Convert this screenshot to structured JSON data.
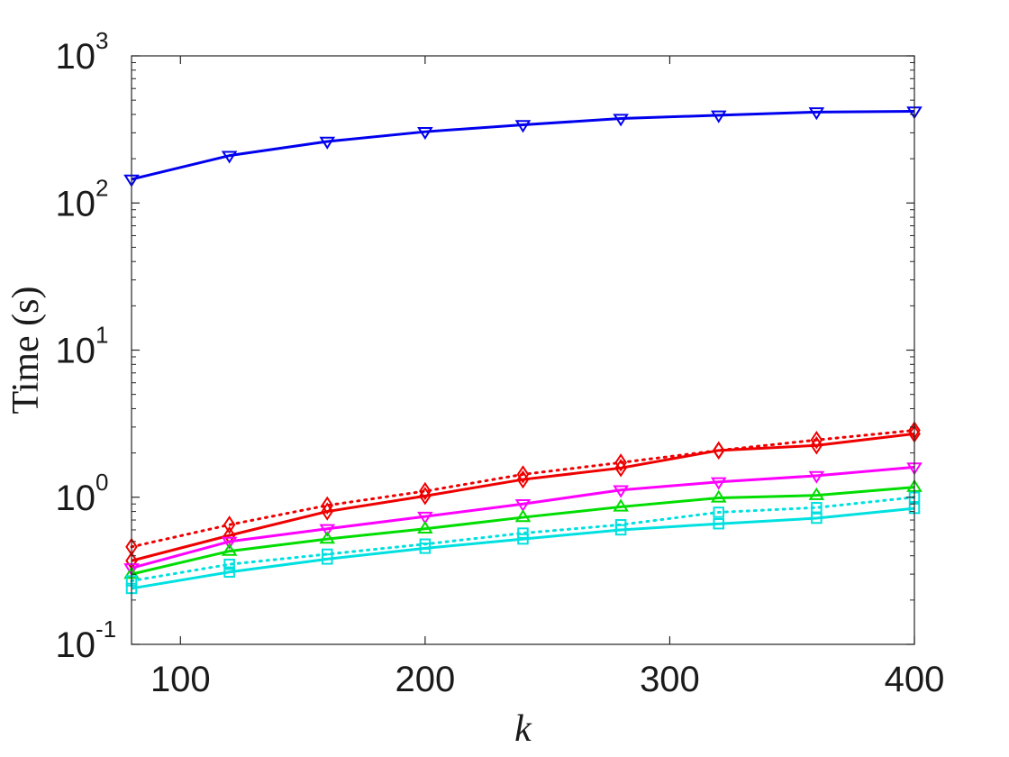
{
  "chart_data": {
    "type": "line",
    "xlabel": "k",
    "ylabel": "Time (s)",
    "xlim": [
      80,
      400
    ],
    "ylim": [
      0.1,
      1000
    ],
    "yscale": "log",
    "grid": false,
    "x": [
      80,
      120,
      160,
      200,
      240,
      280,
      320,
      360,
      400
    ],
    "xticks": [
      100,
      200,
      300,
      400
    ],
    "yticks": [
      {
        "value": 0.1,
        "base": "10",
        "exp": "-1"
      },
      {
        "value": 1,
        "base": "10",
        "exp": "0"
      },
      {
        "value": 10,
        "base": "10",
        "exp": "1"
      },
      {
        "value": 100,
        "base": "10",
        "exp": "2"
      },
      {
        "value": 1000,
        "base": "10",
        "exp": "3"
      }
    ],
    "series": [
      {
        "color": "#0000ee",
        "line": "solid",
        "marker": "triangle-down",
        "values": [
          145,
          210,
          262,
          305,
          340,
          375,
          395,
          415,
          420
        ]
      },
      {
        "color": "#ee0000",
        "line": "dotted",
        "marker": "diamond",
        "values": [
          0.46,
          0.65,
          0.88,
          1.1,
          1.43,
          1.72,
          2.08,
          2.45,
          2.85
        ]
      },
      {
        "color": "#ee0000",
        "line": "solid",
        "marker": "diamond",
        "values": [
          0.37,
          0.55,
          0.8,
          1.02,
          1.32,
          1.58,
          2.08,
          2.25,
          2.7
        ]
      },
      {
        "color": "#ff00ff",
        "line": "solid",
        "marker": "triangle-down",
        "values": [
          0.33,
          0.5,
          0.61,
          0.74,
          0.9,
          1.12,
          1.27,
          1.4,
          1.6
        ]
      },
      {
        "color": "#00dd00",
        "line": "solid",
        "marker": "triangle-up",
        "values": [
          0.3,
          0.43,
          0.52,
          0.61,
          0.73,
          0.86,
          0.99,
          1.03,
          1.17
        ]
      },
      {
        "color": "#00e0e0",
        "line": "dotted",
        "marker": "square",
        "values": [
          0.27,
          0.35,
          0.41,
          0.48,
          0.57,
          0.65,
          0.79,
          0.85,
          1.0
        ]
      },
      {
        "color": "#00e0e0",
        "line": "solid",
        "marker": "square",
        "values": [
          0.24,
          0.31,
          0.38,
          0.45,
          0.52,
          0.6,
          0.66,
          0.72,
          0.84
        ]
      }
    ]
  }
}
